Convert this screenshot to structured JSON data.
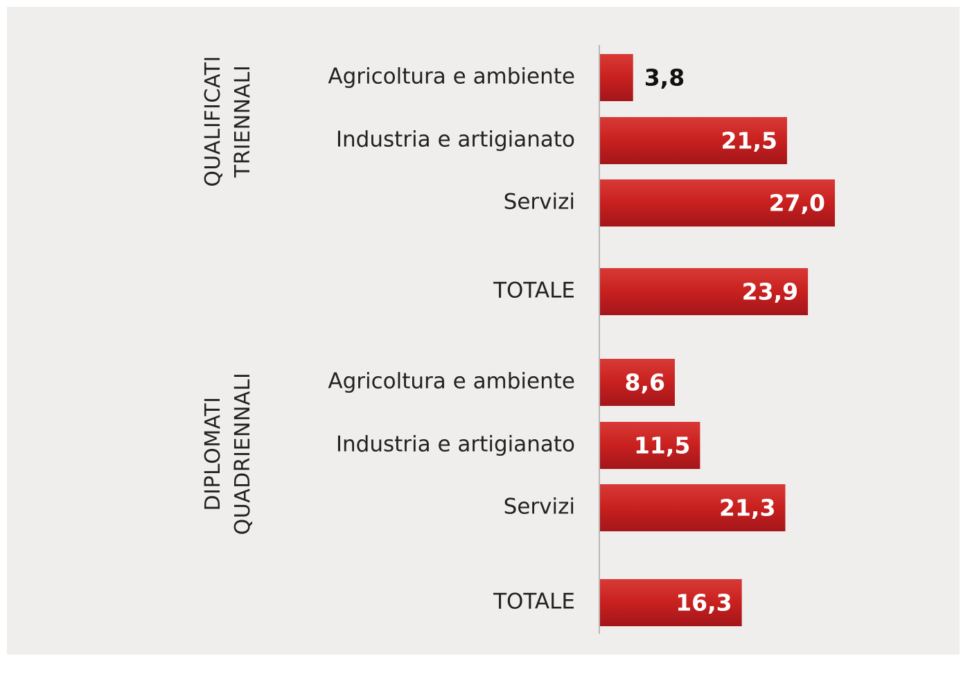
{
  "chart_data": {
    "type": "bar",
    "orientation": "horizontal",
    "color": "#c8201f",
    "groups": [
      [
        "QUALIFICATI",
        "TRIENNALI"
      ],
      [
        "DIPLOMATI",
        "QUADRIENNALI"
      ]
    ],
    "categories": [
      "Agricoltura e ambiente",
      "Industria e artigianato",
      "Servizi",
      "TOTALE",
      "Agricoltura e ambiente",
      "Industria e artigianato",
      "Servizi",
      "TOTALE"
    ],
    "values": [
      3.8,
      21.5,
      27.0,
      23.9,
      8.6,
      11.5,
      21.3,
      16.3
    ],
    "value_labels": [
      "3,8",
      "21,5",
      "27,0",
      "23,9",
      "8,6",
      "11,5",
      "21,3",
      "16,3"
    ]
  }
}
